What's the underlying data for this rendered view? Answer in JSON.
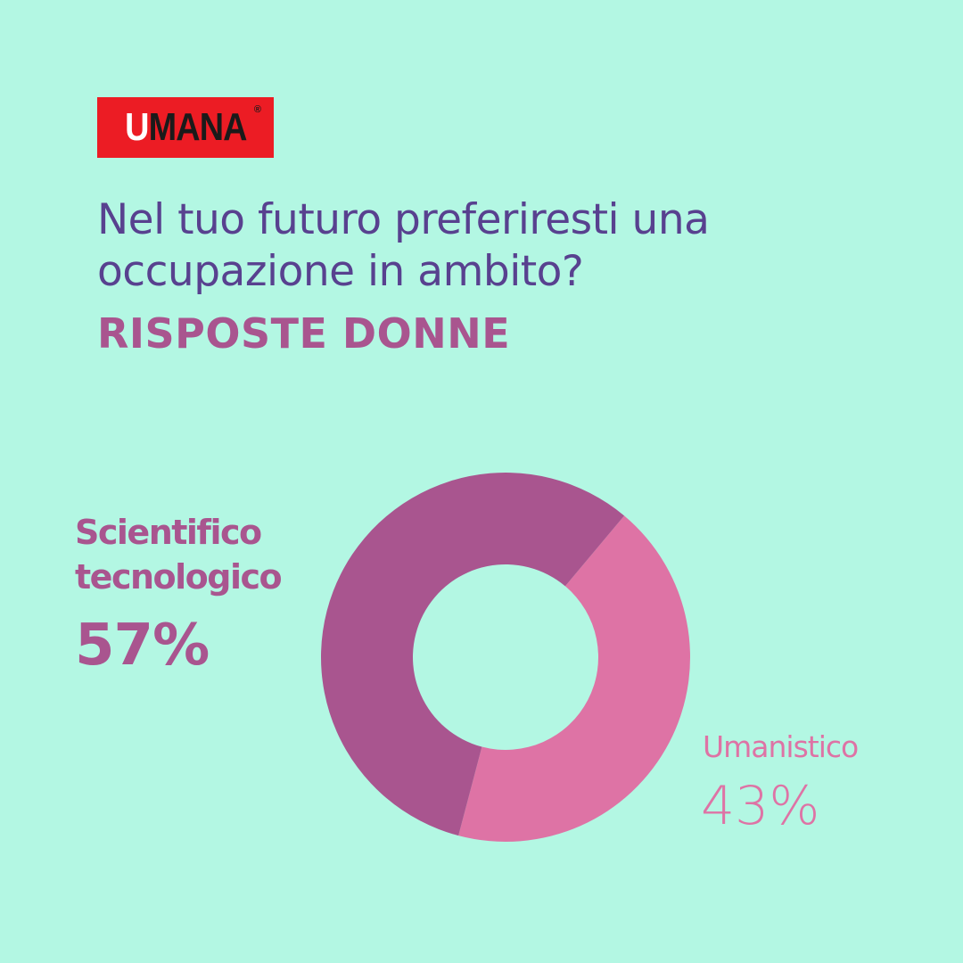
{
  "logo": {
    "first_letter": "U",
    "rest": "MANA",
    "mark": "®",
    "color": "#ec1c24"
  },
  "header": {
    "question": "Nel tuo futuro preferiresti una occupazione in ambito?",
    "subtitle": "RISPOSTE DONNE"
  },
  "colors": {
    "background": "#b3f7e3",
    "question": "#58418f"
  },
  "chart_data": {
    "type": "pie",
    "variant": "donut",
    "categories": [
      "Scientifico tecnologico",
      "Umanistico"
    ],
    "values": [
      57,
      43
    ],
    "value_labels": [
      "57%",
      "43%"
    ],
    "colors": [
      "#a9558f",
      "#de73a5"
    ]
  }
}
